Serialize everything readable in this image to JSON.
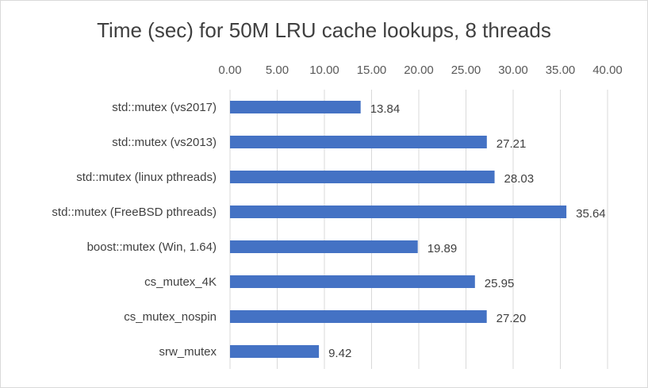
{
  "chart_data": {
    "type": "bar",
    "orientation": "horizontal",
    "title": "Time (sec) for 50M LRU cache lookups, 8 threads",
    "categories": [
      "std::mutex (vs2017)",
      "std::mutex (vs2013)",
      "std::mutex (linux pthreads)",
      "std::mutex (FreeBSD pthreads)",
      "boost::mutex (Win, 1.64)",
      "cs_mutex_4K",
      "cs_mutex_nospin",
      "srw_mutex"
    ],
    "values": [
      13.84,
      27.21,
      28.03,
      35.64,
      19.89,
      25.95,
      27.2,
      9.42
    ],
    "value_labels": [
      "13.84",
      "27.21",
      "28.03",
      "35.64",
      "19.89",
      "25.95",
      "27.20",
      "9.42"
    ],
    "xlim": [
      0,
      40
    ],
    "x_ticks": [
      0,
      5,
      10,
      15,
      20,
      25,
      30,
      35,
      40
    ],
    "x_tick_labels": [
      "0.00",
      "5.00",
      "10.00",
      "15.00",
      "20.00",
      "25.00",
      "30.00",
      "35.00",
      "40.00"
    ],
    "x_axis_position": "top",
    "grid": true,
    "legend": "none",
    "bar_color": "#4472c4",
    "grid_color": "#d9d9d9"
  }
}
